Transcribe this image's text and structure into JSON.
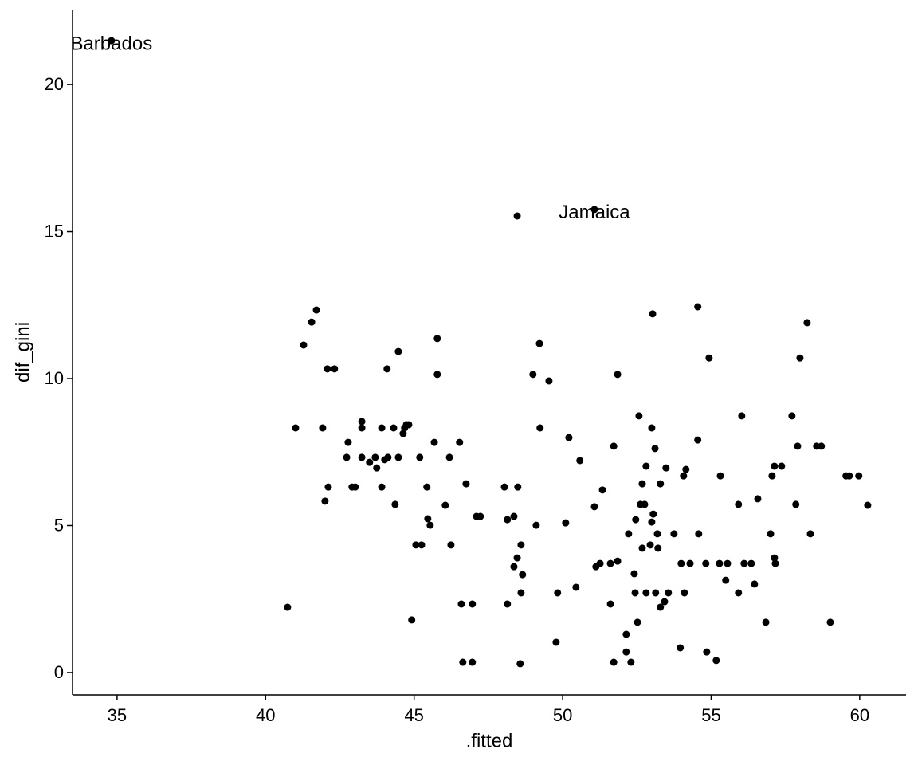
{
  "chart_data": {
    "type": "scatter",
    "x_label": ".fitted",
    "y_label": "dif_gini",
    "xlim": [
      33.5,
      61.56
    ],
    "ylim": [
      -0.76,
      22.55
    ],
    "xticks": [
      35,
      40,
      45,
      50,
      55,
      60
    ],
    "yticks": [
      0,
      5,
      10,
      15,
      20
    ],
    "grid": false,
    "color": "#000000",
    "x": [
      34.81,
      48.47,
      51.07,
      40.74,
      41.01,
      41.28,
      41.55,
      41.71,
      41.92,
      42.0,
      42.08,
      42.11,
      42.32,
      42.73,
      42.78,
      42.91,
      43.02,
      43.24,
      43.24,
      43.24,
      43.5,
      43.69,
      43.74,
      43.91,
      43.91,
      44.01,
      44.09,
      44.12,
      44.31,
      44.36,
      44.47,
      44.47,
      44.63,
      44.68,
      44.74,
      44.82,
      44.92,
      45.06,
      45.25,
      45.19,
      45.43,
      45.46,
      45.54,
      45.68,
      45.78,
      45.78,
      46.05,
      46.19,
      46.24,
      46.53,
      46.59,
      46.64,
      46.75,
      46.96,
      46.96,
      47.1,
      47.23,
      48.04,
      48.14,
      48.14,
      48.36,
      48.36,
      48.47,
      48.49,
      48.6,
      48.6,
      48.65,
      48.57,
      49.0,
      49.11,
      49.22,
      49.24,
      49.54,
      49.78,
      49.83,
      50.1,
      50.21,
      50.45,
      50.58,
      51.07,
      51.12,
      51.26,
      51.34,
      51.61,
      51.61,
      51.72,
      51.72,
      51.85,
      51.85,
      52.14,
      52.14,
      52.22,
      52.3,
      52.41,
      52.44,
      52.46,
      52.52,
      52.57,
      52.62,
      52.68,
      52.68,
      52.81,
      52.76,
      52.81,
      52.95,
      53.0,
      53.0,
      53.03,
      53.05,
      53.11,
      53.13,
      53.19,
      53.21,
      53.29,
      53.29,
      53.43,
      53.48,
      53.56,
      53.75,
      53.96,
      53.99,
      54.07,
      54.1,
      54.15,
      54.29,
      54.55,
      54.55,
      54.58,
      54.82,
      54.85,
      54.93,
      55.17,
      55.28,
      55.31,
      55.49,
      55.55,
      55.92,
      55.92,
      56.03,
      56.11,
      56.35,
      56.46,
      56.57,
      56.84,
      57.0,
      57.05,
      57.13,
      57.13,
      57.16,
      57.37,
      57.72,
      57.85,
      57.91,
      57.99,
      58.23,
      58.34,
      58.55,
      58.71,
      59.01,
      59.54,
      59.65,
      59.97,
      60.27
    ],
    "y": [
      21.49,
      15.53,
      15.75,
      2.22,
      8.32,
      11.14,
      11.92,
      12.33,
      8.32,
      5.83,
      10.33,
      6.31,
      10.33,
      7.32,
      7.83,
      6.31,
      6.31,
      8.54,
      8.32,
      7.32,
      7.15,
      7.32,
      6.96,
      8.32,
      6.31,
      7.24,
      10.33,
      7.32,
      8.32,
      5.72,
      7.32,
      10.92,
      8.13,
      8.32,
      8.43,
      8.43,
      1.79,
      4.34,
      4.34,
      7.32,
      6.31,
      5.23,
      5.01,
      7.83,
      11.36,
      10.14,
      5.69,
      7.32,
      4.34,
      7.83,
      2.33,
      0.35,
      6.42,
      2.33,
      0.35,
      5.31,
      5.31,
      6.31,
      2.33,
      5.2,
      5.31,
      3.6,
      3.9,
      6.31,
      4.34,
      2.71,
      3.33,
      0.3,
      10.14,
      5.01,
      11.19,
      8.32,
      9.92,
      1.03,
      2.71,
      5.09,
      7.99,
      2.9,
      7.21,
      5.64,
      3.6,
      3.71,
      6.21,
      2.33,
      3.71,
      7.7,
      0.35,
      3.79,
      10.14,
      1.3,
      0.7,
      4.72,
      0.35,
      3.36,
      2.71,
      5.2,
      1.71,
      8.73,
      5.72,
      6.42,
      4.23,
      2.71,
      5.72,
      7.02,
      4.34,
      8.32,
      5.12,
      12.2,
      5.39,
      7.62,
      2.71,
      4.72,
      4.23,
      6.42,
      2.22,
      2.41,
      6.96,
      2.71,
      4.72,
      0.84,
      3.71,
      6.69,
      2.71,
      6.91,
      3.71,
      12.44,
      7.91,
      4.72,
      3.71,
      0.7,
      10.7,
      0.41,
      3.71,
      6.69,
      3.14,
      3.71,
      5.72,
      2.71,
      8.73,
      3.71,
      3.71,
      3.01,
      5.91,
      1.71,
      4.72,
      6.69,
      7.02,
      3.9,
      3.71,
      7.02,
      8.73,
      5.72,
      7.7,
      10.7,
      11.9,
      4.72,
      7.7,
      7.7,
      1.71,
      6.69,
      6.69,
      6.69,
      5.69
    ],
    "annotations": [
      {
        "text": "Barbados",
        "x": 34.81,
        "y": 21.49
      },
      {
        "text": "Jamaica",
        "x": 51.07,
        "y": 15.75
      }
    ]
  }
}
